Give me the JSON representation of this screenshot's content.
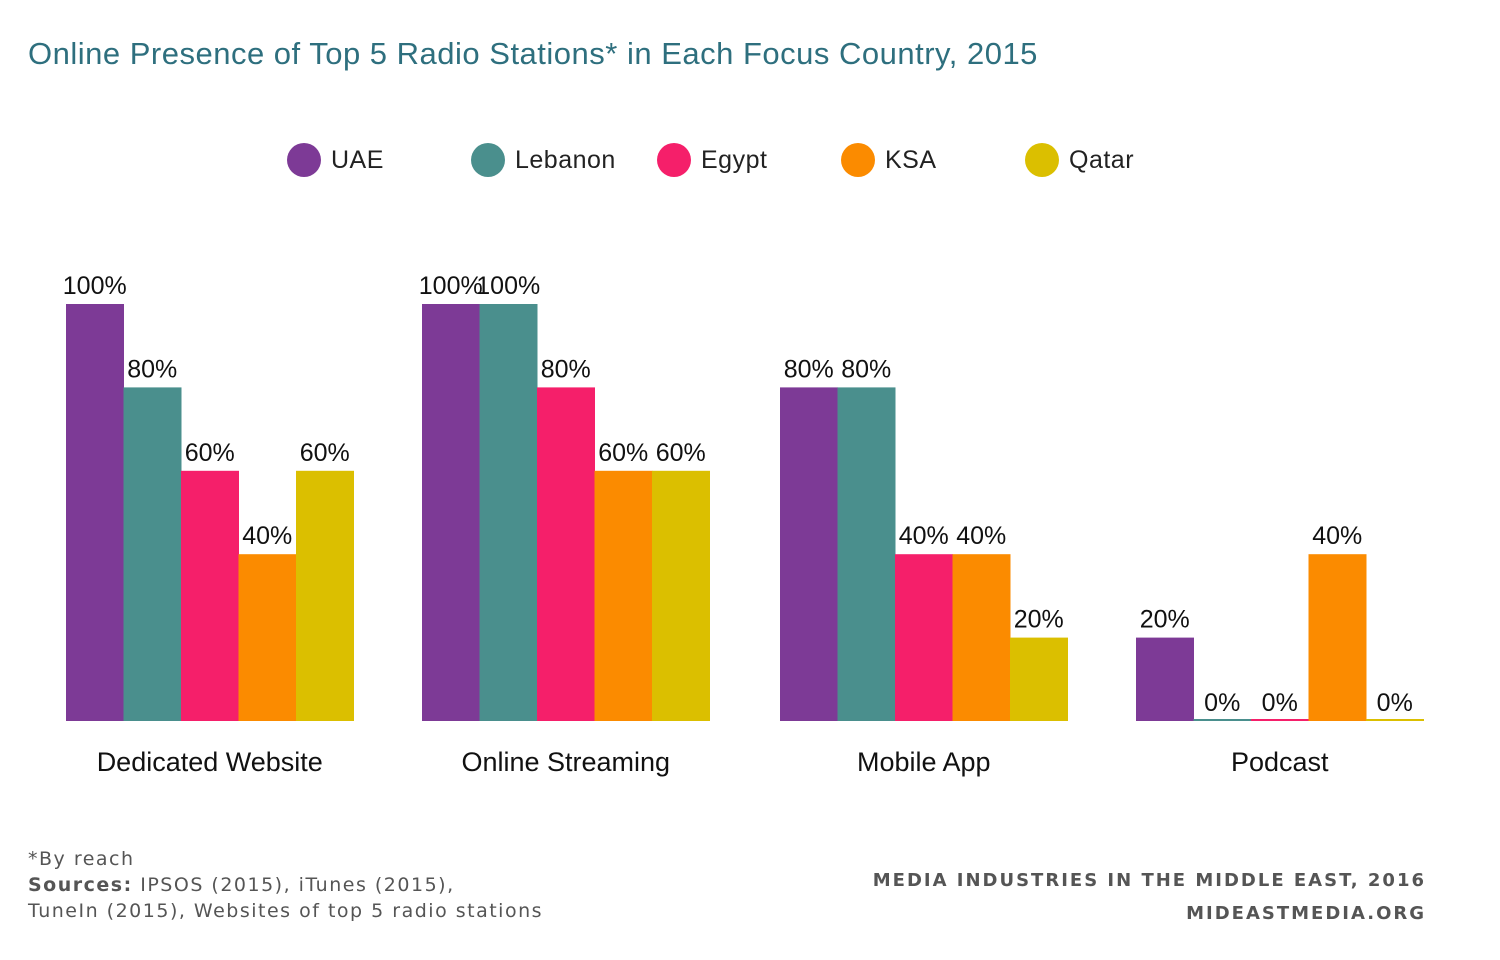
{
  "title": "Online Presence of Top 5 Radio Stations* in Each Focus Country, 2015",
  "colors": {
    "UAE": "#7d3a96",
    "Lebanon": "#4a8f8d",
    "Egypt": "#f51f6a",
    "KSA": "#fb8b00",
    "Qatar": "#dbbf00",
    "title": "#2e6f7e"
  },
  "chart_data": {
    "type": "bar",
    "title": "Online Presence of Top 5 Radio Stations* in Each Focus Country, 2015",
    "xlabel": "",
    "ylabel": "",
    "ylim": [
      0,
      100
    ],
    "grid": false,
    "legend_position": "top",
    "categories": [
      "Dedicated Website",
      "Online Streaming",
      "Mobile App",
      "Podcast"
    ],
    "series": [
      {
        "name": "UAE",
        "values": [
          100,
          100,
          80,
          20
        ]
      },
      {
        "name": "Lebanon",
        "values": [
          80,
          100,
          80,
          0
        ]
      },
      {
        "name": "Egypt",
        "values": [
          60,
          80,
          40,
          0
        ]
      },
      {
        "name": "KSA",
        "values": [
          40,
          60,
          40,
          40
        ]
      },
      {
        "name": "Qatar",
        "values": [
          60,
          60,
          20,
          0
        ]
      }
    ],
    "value_suffix": "%"
  },
  "footnote": {
    "note": "*By reach",
    "sources_label": "Sources:",
    "sources_line1": " IPSOS (2015), iTunes (2015),",
    "sources_line2": "TuneIn (2015), Websites of top 5 radio stations"
  },
  "credit": {
    "line1": "MEDIA INDUSTRIES IN THE MIDDLE EAST, 2016",
    "line2": "MIDEASTMEDIA.ORG"
  }
}
